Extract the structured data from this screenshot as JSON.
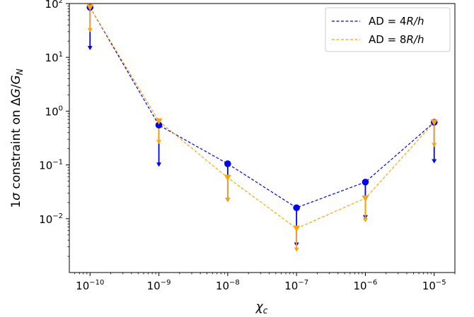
{
  "chart_data": {
    "type": "line",
    "xscale": "log",
    "yscale": "log",
    "xlim": [
      5e-11,
      2e-05
    ],
    "ylim": [
      0.001,
      100
    ],
    "xlabel": "χ_c",
    "ylabel": "1σ constraint on ΔG/G_N",
    "x_ticks": [
      {
        "base": "10",
        "exp": "−10"
      },
      {
        "base": "10",
        "exp": "−9"
      },
      {
        "base": "10",
        "exp": "−8"
      },
      {
        "base": "10",
        "exp": "−7"
      },
      {
        "base": "10",
        "exp": "−6"
      },
      {
        "base": "10",
        "exp": "−5"
      }
    ],
    "y_ticks": [
      {
        "base": "10",
        "exp": "−2"
      },
      {
        "base": "10",
        "exp": "−1"
      },
      {
        "base": "10",
        "exp": "0"
      },
      {
        "base": "10",
        "exp": "1"
      },
      {
        "base": "10",
        "exp": "2"
      }
    ],
    "legend_position": "top-right",
    "x": [
      1e-10,
      1e-09,
      1e-08,
      1e-07,
      1e-06,
      1e-05
    ],
    "series": [
      {
        "name": "AD = 4R/h",
        "color": "#0000ff",
        "marker": "circle",
        "values": [
          85,
          0.55,
          0.105,
          0.016,
          0.048,
          0.62
        ],
        "lower_limits": [
          14,
          0.095,
          0.021,
          0.0031,
          0.01,
          0.11
        ]
      },
      {
        "name": "AD = 8R/h",
        "color": "#ffa500",
        "marker": "triangle-down",
        "values": [
          85,
          0.65,
          0.058,
          0.0066,
          0.024,
          0.62
        ],
        "lower_limits": [
          30,
          0.25,
          0.021,
          0.0025,
          0.0088,
          0.22
        ]
      }
    ],
    "legend": {
      "entries": [
        {
          "prefix": "AD = 4",
          "italic": "R/h"
        },
        {
          "prefix": "AD = 8",
          "italic": "R/h"
        }
      ]
    }
  }
}
